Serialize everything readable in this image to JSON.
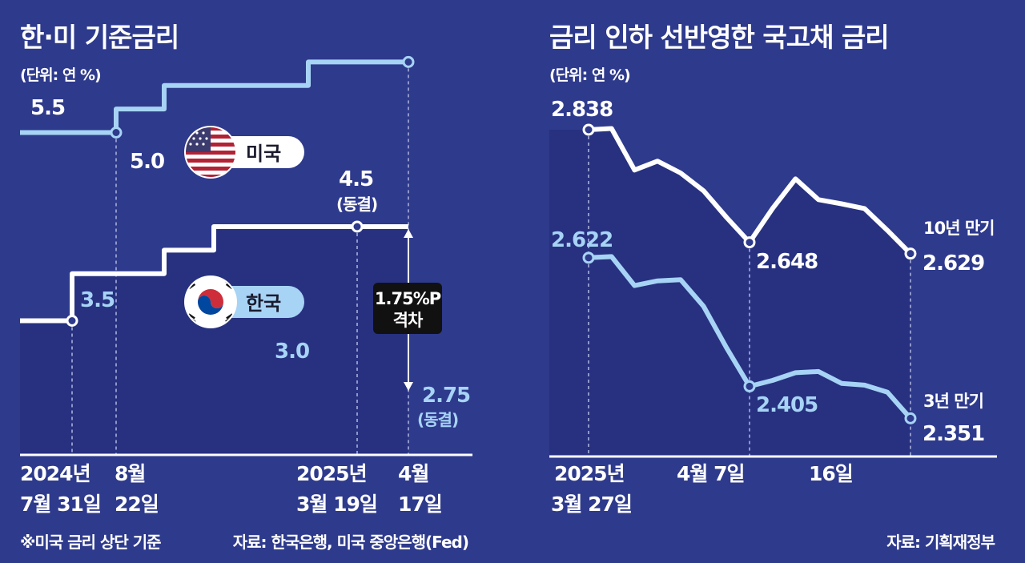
{
  "colors": {
    "background": "#2e3a8c",
    "plot_area": "#273180",
    "us_line": "#ffffff",
    "kr_line": "#a7d3f5",
    "gap_badge": "#111111"
  },
  "left": {
    "title": "한·미 기준금리",
    "unit": "(단위: 연 %)",
    "us_badge": {
      "label": "미국",
      "icon": "us-flag-icon"
    },
    "kr_badge": {
      "label": "한국",
      "icon": "korea-flag-icon"
    },
    "gap_badge": {
      "line1": "1.75%P",
      "line2": "격차"
    },
    "footnote": "※미국 금리 상단 기준",
    "source": "자료: 한국은행, 미국 중앙은행(Fed)"
  },
  "right": {
    "title": "금리 인하 선반영한 국고채 금리",
    "unit": "(단위: 연 %)",
    "source": "자료: 기획재정부"
  },
  "chart_data": [
    {
      "type": "line",
      "step": true,
      "title": "한·미 기준금리",
      "unit": "(단위: 연 %)",
      "x_ticks": [
        {
          "line1": "2024년",
          "line2": "7월 31일"
        },
        {
          "line1": "8월",
          "line2": "22일"
        },
        {
          "line1": "2025년",
          "line2": "3월 19일"
        },
        {
          "line1": "4월",
          "line2": "17일"
        }
      ],
      "series": [
        {
          "name": "미국",
          "color": "#ffffff",
          "steps": [
            5.5,
            5.0,
            4.75,
            4.5
          ],
          "point_labels": [
            {
              "text": "5.5"
            },
            {
              "text": "5.0"
            },
            {
              "text": "4.5",
              "sub": "(동결)"
            }
          ]
        },
        {
          "name": "한국",
          "color": "#a7d3f5",
          "steps": [
            3.5,
            3.25,
            3.0,
            2.75
          ],
          "point_labels": [
            {
              "text": "3.5"
            },
            {
              "text": "3.0"
            },
            {
              "text": "2.75",
              "sub": "(동결)"
            }
          ]
        }
      ],
      "annotations": [
        "1.75%P 격차"
      ],
      "footnote": "※미국 금리 상단 기준",
      "source": "자료: 한국은행, 미국 중앙은행(Fed)"
    },
    {
      "type": "line",
      "title": "금리 인하 선반영한 국고채 금리",
      "unit": "(단위: 연 %)",
      "x_ticks": [
        {
          "line1": "2025년",
          "line2": "3월 27일"
        },
        {
          "line1": "4월 7일",
          "line2": ""
        },
        {
          "line1": "16일",
          "line2": ""
        }
      ],
      "series": [
        {
          "name": "10년 만기",
          "color": "#ffffff",
          "values": [
            2.838,
            2.84,
            2.77,
            2.785,
            2.765,
            2.735,
            2.69,
            2.648,
            2.705,
            2.755,
            2.72,
            2.713,
            2.705,
            2.668,
            2.629
          ],
          "labeled": [
            {
              "text": "2.838"
            },
            {
              "text": "2.648"
            },
            {
              "text": "2.629"
            }
          ]
        },
        {
          "name": "3년 만기",
          "color": "#a7d3f5",
          "values": [
            2.622,
            2.624,
            2.575,
            2.583,
            2.585,
            2.54,
            2.47,
            2.405,
            2.415,
            2.428,
            2.43,
            2.41,
            2.407,
            2.395,
            2.351
          ],
          "labeled": [
            {
              "text": "2.622"
            },
            {
              "text": "2.405"
            },
            {
              "text": "2.351"
            }
          ]
        }
      ],
      "source": "자료: 기획재정부"
    }
  ]
}
